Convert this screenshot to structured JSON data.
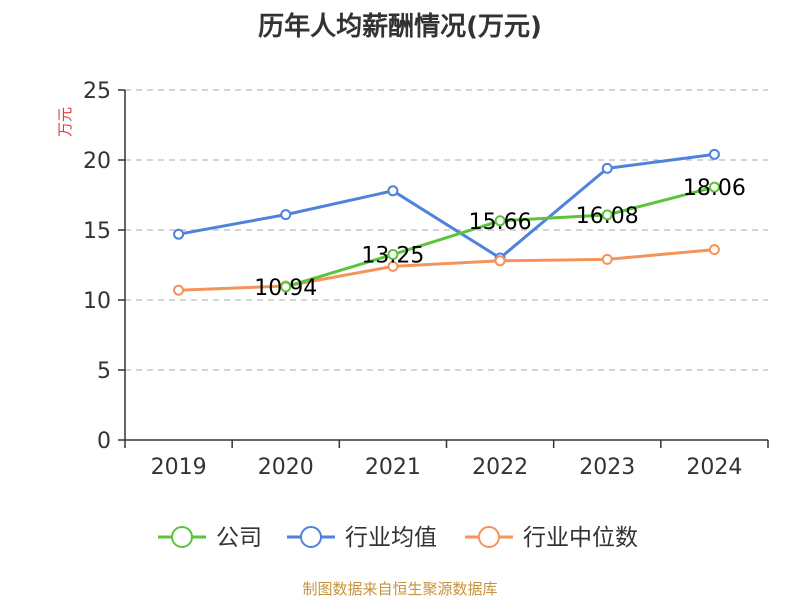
{
  "footer": {
    "source": "制图数据来自恒生聚源数据库"
  },
  "chart_data": {
    "type": "line",
    "title": "历年人均薪酬情况(万元)",
    "ylabel": "万元",
    "xlabel": "",
    "categories": [
      "2019",
      "2020",
      "2021",
      "2022",
      "2023",
      "2024"
    ],
    "ylim": [
      0,
      25
    ],
    "yticks": [
      0,
      5,
      10,
      15,
      20,
      25
    ],
    "grid": true,
    "legend_position": "bottom",
    "series": [
      {
        "name": "公司",
        "color": "#5ac43c",
        "values": [
          null,
          10.94,
          13.25,
          15.66,
          16.08,
          18.06
        ],
        "data_labels": [
          "",
          "10.94",
          "13.25",
          "15.66",
          "16.08",
          "18.06"
        ]
      },
      {
        "name": "行业均值",
        "color": "#4f82dc",
        "values": [
          14.7,
          16.1,
          17.8,
          13.0,
          19.4,
          20.4
        ]
      },
      {
        "name": "行业中位数",
        "color": "#f5935a",
        "values": [
          10.7,
          11.0,
          12.4,
          12.8,
          12.9,
          13.6
        ]
      }
    ]
  }
}
